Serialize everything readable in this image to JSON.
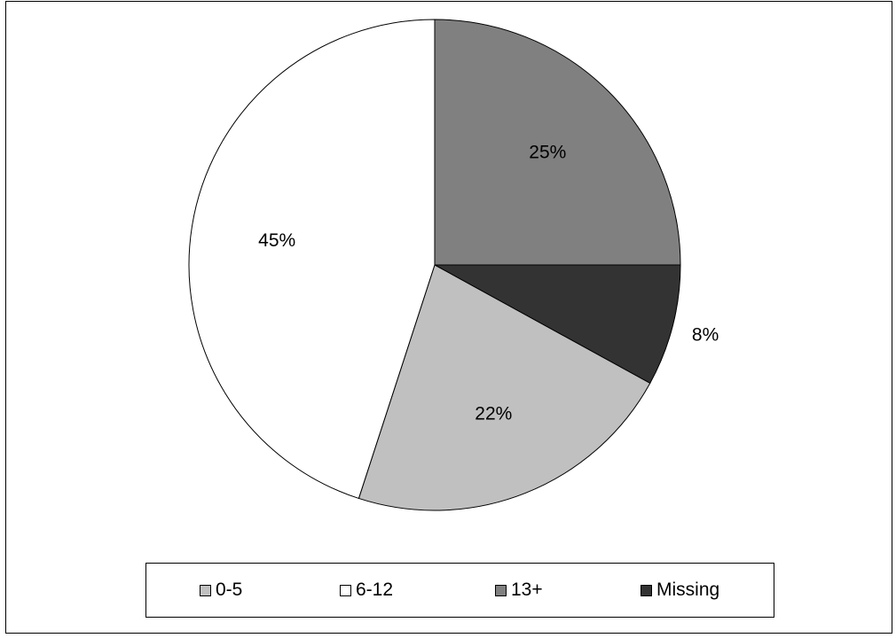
{
  "chart_data": {
    "type": "pie",
    "title": "",
    "slices": [
      {
        "label": "13+",
        "value": 25,
        "display": "25%",
        "color": "#808080"
      },
      {
        "label": "Missing",
        "value": 8,
        "display": "8%",
        "color": "#333333"
      },
      {
        "label": "0-5",
        "value": 22,
        "display": "22%",
        "color": "#c0c0c0"
      },
      {
        "label": "6-12",
        "value": 45,
        "display": "45%",
        "color": "#ffffff"
      }
    ],
    "start_angle_deg": 0,
    "direction": "clockwise",
    "legend_position": "bottom",
    "legend": [
      {
        "label": "0-5",
        "color": "#c0c0c0"
      },
      {
        "label": "6-12",
        "color": "#ffffff"
      },
      {
        "label": "13+",
        "color": "#808080"
      },
      {
        "label": "Missing",
        "color": "#333333"
      }
    ]
  }
}
